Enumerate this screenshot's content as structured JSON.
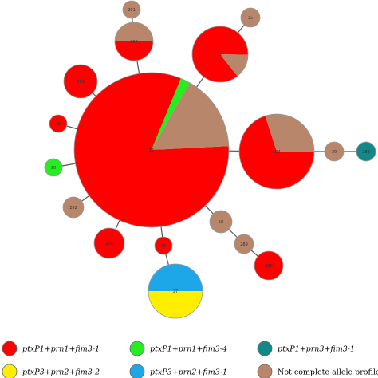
{
  "colors": {
    "ptxP1_prn1_fim3_1": "#ff0000",
    "ptxP1_prn1_fim3_4": "#22ee22",
    "ptxP1_prn3_fim3_1": "#128888",
    "ptxP3_prn2_fim3_2": "#ffee00",
    "ptxP3_prn2_fim3_1": "#1ea7e8",
    "not_complete": "#b8866a"
  },
  "nodes": [
    {
      "id": "291",
      "label": "291",
      "slices": [
        {
          "key": "not_complete",
          "value": 1
        }
      ]
    },
    {
      "id": "290",
      "label": "290",
      "slices": [
        {
          "key": "ptxP1_prn1_fim3_1",
          "value": 0.5
        },
        {
          "key": "not_complete",
          "value": 0.5
        }
      ]
    },
    {
      "id": "2s",
      "label": "2s",
      "slices": [
        {
          "key": "not_complete",
          "value": 1
        }
      ]
    },
    {
      "id": "hub_top",
      "label": "16",
      "slices": [
        {
          "key": "ptxP1_prn1_fim3_1",
          "value": 0.86
        },
        {
          "key": "not_complete",
          "value": 0.14
        }
      ]
    },
    {
      "id": "286",
      "label": "286",
      "slices": [
        {
          "key": "ptxP1_prn1_fim3_1",
          "value": 1
        }
      ]
    },
    {
      "id": "center",
      "label": "15",
      "slices": [
        {
          "key": "ptxP1_prn1_fim3_1",
          "value": 0.82
        },
        {
          "key": "ptxP1_prn1_fim3_4",
          "value": 0.02
        },
        {
          "key": "not_complete",
          "value": 0.16
        }
      ]
    },
    {
      "id": "n_left1",
      "label": "15",
      "slices": [
        {
          "key": "ptxP1_prn1_fim3_1",
          "value": 1
        }
      ]
    },
    {
      "id": "hub_right",
      "label": "194",
      "slices": [
        {
          "key": "ptxP1_prn1_fim3_1",
          "value": 0.7
        },
        {
          "key": "not_complete",
          "value": 0.3
        }
      ]
    },
    {
      "id": "30",
      "label": "30",
      "slices": [
        {
          "key": "not_complete",
          "value": 1
        }
      ]
    },
    {
      "id": "288",
      "label": "288",
      "slices": [
        {
          "key": "ptxP1_prn3_fim3_1",
          "value": 1
        }
      ]
    },
    {
      "id": "90",
      "label": "90",
      "slices": [
        {
          "key": "ptxP1_prn1_fim3_4",
          "value": 1
        }
      ]
    },
    {
      "id": "292",
      "label": "292",
      "slices": [
        {
          "key": "not_complete",
          "value": 1
        }
      ]
    },
    {
      "id": "n_lowright",
      "label": "58",
      "slices": [
        {
          "key": "not_complete",
          "value": 1
        }
      ]
    },
    {
      "id": "289",
      "label": "289",
      "slices": [
        {
          "key": "not_complete",
          "value": 1
        }
      ]
    },
    {
      "id": "280",
      "label": "280",
      "slices": [
        {
          "key": "ptxP1_prn1_fim3_1",
          "value": 1
        }
      ]
    },
    {
      "id": "298",
      "label": "298",
      "slices": [
        {
          "key": "ptxP1_prn1_fim3_1",
          "value": 1
        }
      ]
    },
    {
      "id": "n_small",
      "label": "76",
      "slices": [
        {
          "key": "ptxP1_prn1_fim3_1",
          "value": 1
        }
      ]
    },
    {
      "id": "27",
      "label": "27",
      "slices": [
        {
          "key": "ptxP3_prn2_fim3_1",
          "value": 0.5
        },
        {
          "key": "ptxP3_prn2_fim3_2",
          "value": 0.5
        }
      ]
    }
  ],
  "legend": [
    {
      "key": "ptxP1_prn1_fim3_1",
      "label": "ptxP1+prn1+fim3-1",
      "italic": true
    },
    {
      "key": "ptxP1_prn1_fim3_4",
      "label": "ptxP1+prn1+fim3-4",
      "italic": true
    },
    {
      "key": "ptxP1_prn3_fim3_1",
      "label": "ptxP1+prn3+fim3-1",
      "italic": true
    },
    {
      "key": "ptxP3_prn2_fim3_2",
      "label": "ptxP3+prn2+fim3-2",
      "italic": true
    },
    {
      "key": "ptxP3_prn2_fim3_1",
      "label": "ptxP3+prn2+fim3-1",
      "italic": true
    },
    {
      "key": "not_complete",
      "label": "Not complete allele profile",
      "italic": false
    }
  ]
}
